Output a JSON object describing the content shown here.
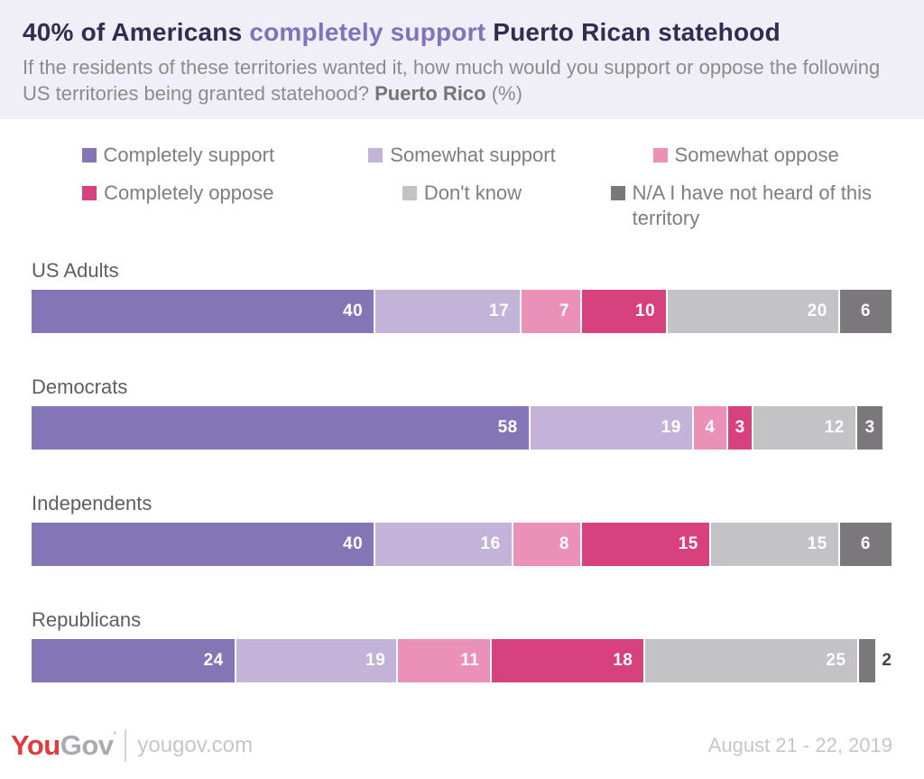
{
  "header": {
    "title_part1": "40% of Americans ",
    "title_part2": "completely support",
    "title_part3": " Puerto Rican statehood",
    "subtitle_prefix": "If the residents of these territories wanted it, how much would you support or oppose the following US territories being granted statehood? ",
    "subtitle_bold": "Puerto Rico",
    "subtitle_suffix": " (%)"
  },
  "colors": {
    "header_background": "#f0eef6",
    "title_dark": "#332c52",
    "title_accent": "#8172bc",
    "legend_text": "#7e7e7e",
    "group_label": "#5e5e5e",
    "value_label_inside": "#ffffff",
    "value_label_outside": "#444444",
    "logo_red": "#e03c3f",
    "logo_gray": "#a9abae"
  },
  "chart_data": {
    "type": "bar",
    "orientation": "horizontal_stacked",
    "unit": "percent",
    "title": "40% of Americans completely support Puerto Rican statehood",
    "categories": [
      "US Adults",
      "Democrats",
      "Independents",
      "Republicans"
    ],
    "series": [
      {
        "name": "Completely support",
        "color": "#8475b7",
        "values": [
          40,
          58,
          40,
          24
        ]
      },
      {
        "name": "Somewhat support",
        "color": "#c3b3d9",
        "values": [
          17,
          19,
          16,
          19
        ]
      },
      {
        "name": "Somewhat oppose",
        "color": "#eb90b7",
        "values": [
          7,
          4,
          8,
          11
        ]
      },
      {
        "name": "Completely oppose",
        "color": "#d7417e",
        "values": [
          10,
          3,
          15,
          18
        ]
      },
      {
        "name": "Don't know",
        "color": "#c3c2c4",
        "values": [
          20,
          12,
          15,
          25
        ]
      },
      {
        "name": "N/A I have not heard of this territory",
        "color": "#7a787a",
        "values": [
          6,
          3,
          6,
          2
        ]
      }
    ],
    "xlim": [
      0,
      100
    ],
    "grid": false,
    "value_labels": "inside",
    "legend_position": "top"
  },
  "footer": {
    "logo_you": "You",
    "logo_gov": "Gov",
    "url": "yougov.com",
    "date": "August 21 - 22, 2019"
  }
}
